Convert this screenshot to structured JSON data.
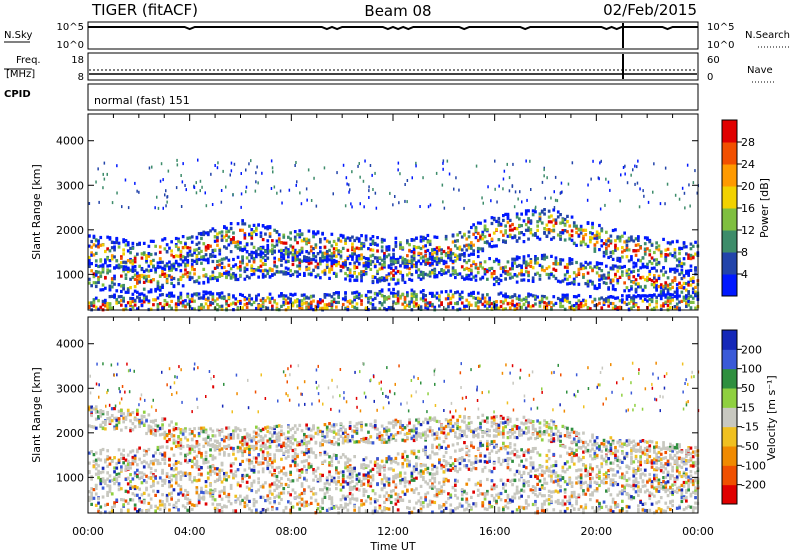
{
  "header": {
    "radar": "TIGER (fitACF)",
    "beam": "Beam 08",
    "date": "02/Feb/2015"
  },
  "strips": {
    "nsky_label": "N.Sky",
    "nsky_ticks": [
      "10^5",
      "10^0"
    ],
    "nsearch_label": "N.Search",
    "nsearch_ticks": [
      "10^5",
      "10^0"
    ],
    "freq_label": "Freq.",
    "freq_unit": "[MHz]",
    "freq_ticks": [
      "18",
      "8"
    ],
    "nave_label": "Nave",
    "nave_ticks": [
      "60",
      "0"
    ],
    "cpid_label": "CPID",
    "cpid_value": "normal (fast) 151"
  },
  "colors": {
    "power_scale": [
      "#0018ff",
      "#2244aa",
      "#3d8c6a",
      "#7fbf40",
      "#f2d200",
      "#ff9a00",
      "#f25000",
      "#e00000"
    ],
    "velocity_scale": [
      "#1528b8",
      "#3a5ad8",
      "#2f8f3f",
      "#8fd040",
      "#c8c8c0",
      "#f0c020",
      "#f08a00",
      "#f05000",
      "#e00000"
    ]
  },
  "chart_data": [
    {
      "type": "heatmap",
      "name": "power",
      "ylabel": "Slant Range [km]",
      "yticks": [
        "1000",
        "2000",
        "3000",
        "4000"
      ],
      "ylim": [
        200,
        4600
      ],
      "xticks": [
        "00:00",
        "04:00",
        "08:00",
        "12:00",
        "16:00",
        "20:00",
        "00:00"
      ],
      "colorbar_label": "Power [dB]",
      "colorbar_ticks": [
        "4",
        "8",
        "12",
        "16",
        "20",
        "24",
        "28"
      ],
      "bands": [
        {
          "name": "low",
          "points": [
            [
              0,
              300
            ],
            [
              4,
              400
            ],
            [
              8,
              350
            ],
            [
              12,
              450
            ],
            [
              16,
              380
            ],
            [
              20,
              300
            ],
            [
              24,
              350
            ]
          ],
          "width": 250
        },
        {
          "name": "mid",
          "points": [
            [
              0,
              1000
            ],
            [
              2,
              900
            ],
            [
              4,
              1100
            ],
            [
              6,
              1200
            ],
            [
              8,
              1300
            ],
            [
              10,
              1200
            ],
            [
              12,
              1100
            ],
            [
              14,
              1300
            ],
            [
              16,
              1100
            ],
            [
              18,
              1200
            ],
            [
              20,
              1000
            ],
            [
              24,
              800
            ]
          ],
          "width": 300
        },
        {
          "name": "upper",
          "points": [
            [
              0,
              1600
            ],
            [
              2,
              1400
            ],
            [
              4,
              1600
            ],
            [
              6,
              1900
            ],
            [
              8,
              1700
            ],
            [
              10,
              1600
            ],
            [
              12,
              1500
            ],
            [
              14,
              1600
            ],
            [
              16,
              2000
            ],
            [
              18,
              2200
            ],
            [
              20,
              1800
            ],
            [
              22,
              1500
            ],
            [
              24,
              1400
            ]
          ],
          "width": 350
        }
      ]
    },
    {
      "type": "heatmap",
      "name": "velocity",
      "ylabel": "Slant Range [km]",
      "yticks": [
        "1000",
        "2000",
        "3000",
        "4000"
      ],
      "ylim": [
        200,
        4600
      ],
      "xticks": [
        "00:00",
        "04:00",
        "08:00",
        "12:00",
        "16:00",
        "20:00",
        "00:00"
      ],
      "xlabel": "Time UT",
      "colorbar_label": "Velocity [m s⁻¹]",
      "colorbar_ticks": [
        "200",
        "100",
        "50",
        "15",
        "-15",
        "-50",
        "-100",
        "-200"
      ],
      "bands": [
        {
          "name": "ground",
          "points": [
            [
              0,
              600
            ],
            [
              4,
              700
            ],
            [
              8,
              600
            ],
            [
              12,
              650
            ],
            [
              16,
              600
            ],
            [
              20,
              550
            ],
            [
              24,
              600
            ]
          ],
          "width": 400
        },
        {
          "name": "mid",
          "points": [
            [
              0,
              1300
            ],
            [
              4,
              1400
            ],
            [
              8,
              1400
            ],
            [
              10,
              1200
            ],
            [
              12,
              1200
            ],
            [
              14,
              1500
            ],
            [
              16,
              1500
            ],
            [
              18,
              1300
            ],
            [
              20,
              1200
            ],
            [
              24,
              1100
            ]
          ],
          "width": 350
        },
        {
          "name": "upper",
          "points": [
            [
              0,
              2400
            ],
            [
              2,
              2300
            ],
            [
              4,
              1900
            ],
            [
              6,
              1900
            ],
            [
              16,
              2200
            ],
            [
              18,
              2100
            ],
            [
              20,
              1700
            ],
            [
              24,
              1500
            ]
          ],
          "width": 250
        }
      ]
    }
  ]
}
